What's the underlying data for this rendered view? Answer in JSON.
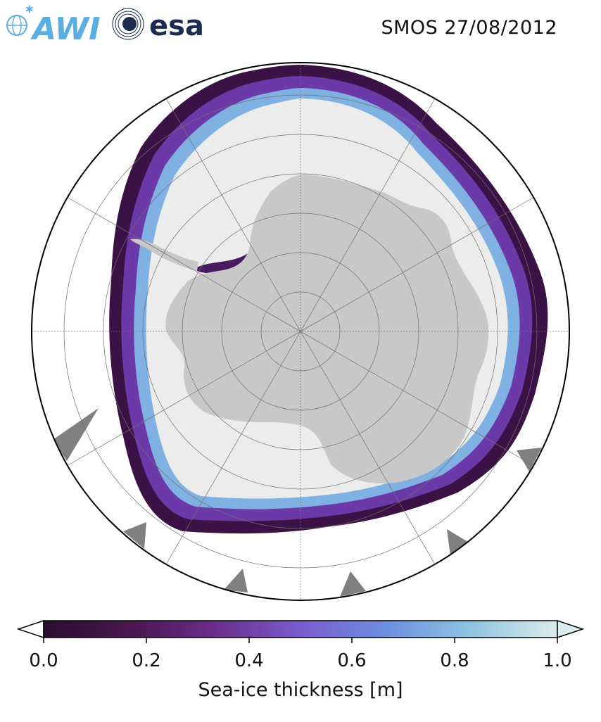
{
  "header": {
    "title": "SMOS 27/08/2012",
    "logos": [
      {
        "name": "awi-logo",
        "text": "AWI",
        "color": "#5aaee0"
      },
      {
        "name": "esa-logo",
        "text": "esa",
        "color": "#1b2c4f"
      }
    ]
  },
  "map": {
    "projection": "south-polar-stereographic",
    "colors": {
      "land": "#c8c8c8",
      "thick_ice": "#ececec",
      "missing_data": "#808080",
      "ocean": "#ffffff",
      "graticule": "#707070"
    }
  },
  "colorbar": {
    "label": "Sea-ice thickness [m]",
    "ticks": [
      "0.0",
      "0.2",
      "0.4",
      "0.6",
      "0.8",
      "1.0"
    ],
    "range": [
      0.0,
      1.0
    ],
    "extend": "both",
    "colormap": [
      "#2a0e2e",
      "#4a1650",
      "#6b2d8a",
      "#7a5ccc",
      "#6d90e0",
      "#8ec4e2",
      "#dcecec"
    ]
  }
}
